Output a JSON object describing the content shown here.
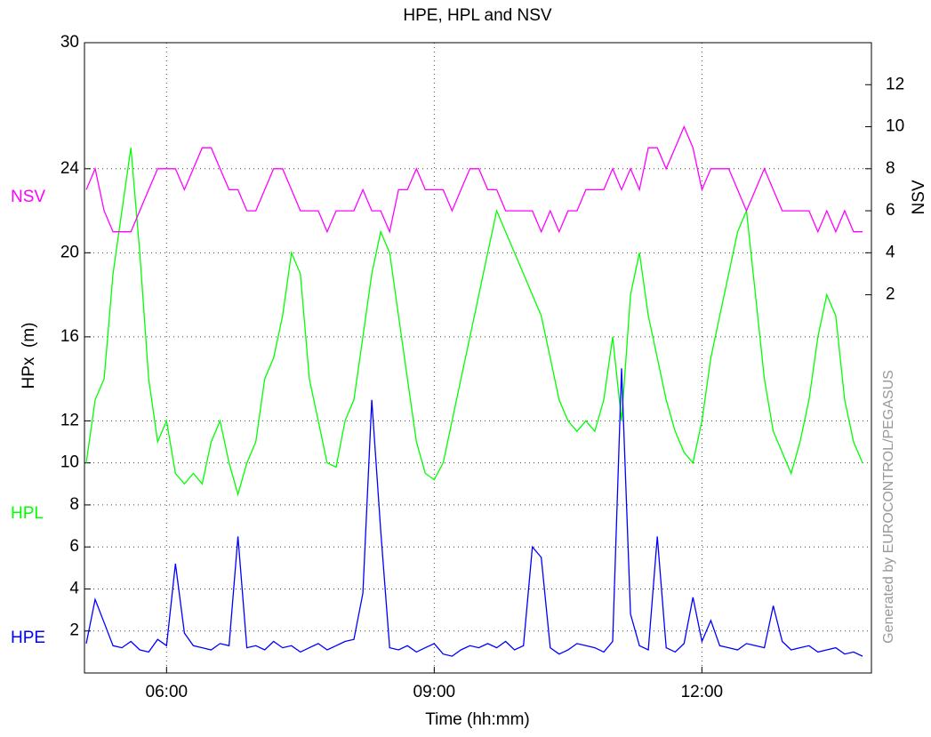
{
  "chart_data": {
    "type": "line",
    "title": "HPE, HPL and NSV",
    "x_label": "Time (hh:mm)",
    "y_label": "HPx  (m)",
    "y2_label": "NSV",
    "annotation": "Generated by EUROCONTROL/PEGASUS",
    "x": [
      5.1,
      5.2,
      5.3,
      5.4,
      5.5,
      5.6,
      5.7,
      5.8,
      5.9,
      6.0,
      6.1,
      6.2,
      6.3,
      6.4,
      6.5,
      6.6,
      6.7,
      6.8,
      6.9,
      7.0,
      7.1,
      7.2,
      7.3,
      7.4,
      7.5,
      7.6,
      7.7,
      7.8,
      7.9,
      8.0,
      8.1,
      8.2,
      8.3,
      8.4,
      8.5,
      8.6,
      8.7,
      8.8,
      8.9,
      9.0,
      9.1,
      9.2,
      9.3,
      9.4,
      9.5,
      9.6,
      9.7,
      9.8,
      9.9,
      10.0,
      10.1,
      10.2,
      10.3,
      10.4,
      10.5,
      10.6,
      10.7,
      10.8,
      10.9,
      11.0,
      11.1,
      11.2,
      11.3,
      11.4,
      11.5,
      11.6,
      11.7,
      11.8,
      11.9,
      12.0,
      12.1,
      12.2,
      12.3,
      12.4,
      12.5,
      12.6,
      12.7,
      12.8,
      12.9,
      13.0,
      13.1,
      13.2,
      13.3,
      13.4,
      13.5,
      13.6,
      13.7,
      13.8
    ],
    "series": [
      {
        "name": "HPL",
        "color": "#00ff00",
        "values": [
          10,
          13,
          14,
          19,
          22,
          25,
          20,
          14,
          11,
          12,
          9.5,
          9,
          9.5,
          9,
          11,
          12,
          10,
          8.5,
          10,
          11,
          14,
          15,
          17,
          20,
          19,
          14,
          12,
          10,
          9.8,
          12,
          13,
          16,
          19,
          21,
          20,
          17,
          14,
          11,
          9.5,
          9.2,
          10,
          12,
          14,
          16,
          18,
          20,
          22,
          21,
          20,
          19,
          18,
          17,
          15,
          13,
          12,
          11.5,
          12,
          11.5,
          13,
          16,
          12,
          18,
          20,
          17,
          15,
          13,
          11.5,
          10.5,
          10,
          12,
          15,
          17,
          19,
          21,
          22,
          18,
          14,
          11.5,
          10.5,
          9.5,
          11,
          13,
          16,
          18,
          17,
          13,
          11,
          10
        ]
      },
      {
        "name": "NSV",
        "color": "#ff00ff",
        "axis": "y2",
        "values": [
          7,
          8,
          6,
          5,
          5,
          5,
          6,
          7,
          8,
          8,
          8,
          7,
          8,
          9,
          9,
          8,
          7,
          7,
          6,
          6,
          7,
          8,
          8,
          7,
          6,
          6,
          6,
          5,
          6,
          6,
          6,
          7,
          6,
          6,
          5,
          7,
          7,
          8,
          7,
          7,
          7,
          6,
          7,
          8,
          8,
          7,
          7,
          6,
          6,
          6,
          6,
          5,
          6,
          5,
          6,
          6,
          7,
          7,
          7,
          8,
          7,
          8,
          7,
          9,
          9,
          8,
          9,
          10,
          9,
          7,
          8,
          8,
          8,
          7,
          6,
          7,
          8,
          7,
          6,
          6,
          6,
          6,
          5,
          6,
          5,
          6,
          5,
          5
        ]
      },
      {
        "name": "HPE",
        "color": "#0000ff",
        "values": [
          1.4,
          3.5,
          2.4,
          1.3,
          1.2,
          1.5,
          1.1,
          1.0,
          1.6,
          1.3,
          5.2,
          1.9,
          1.3,
          1.2,
          1.1,
          1.4,
          1.3,
          6.5,
          1.2,
          1.3,
          1.1,
          1.5,
          1.2,
          1.3,
          1.0,
          1.2,
          1.4,
          1.1,
          1.3,
          1.5,
          1.6,
          3.8,
          13,
          6.8,
          1.2,
          1.1,
          1.3,
          1.0,
          1.2,
          1.4,
          0.9,
          0.8,
          1.1,
          1.3,
          1.2,
          1.4,
          1.2,
          1.5,
          1.1,
          1.3,
          6,
          5.5,
          1.2,
          0.9,
          1.1,
          1.4,
          1.3,
          1.2,
          1.0,
          1.5,
          14.5,
          2.8,
          1.3,
          1.1,
          6.5,
          1.2,
          1.0,
          1.4,
          3.6,
          1.5,
          2.5,
          1.3,
          1.2,
          1.1,
          1.4,
          1.3,
          1.2,
          3.2,
          1.5,
          1.1,
          1.2,
          1.3,
          1.0,
          1.1,
          1.2,
          0.9,
          1.0,
          0.8
        ]
      }
    ],
    "xlim": [
      5.08,
      13.9
    ],
    "xticks": [
      {
        "value": 6,
        "label": "06:00"
      },
      {
        "value": 9,
        "label": "09:00"
      },
      {
        "value": 12,
        "label": "12:00"
      }
    ],
    "ylim": [
      0,
      30
    ],
    "yticks": [
      2,
      4,
      6,
      8,
      10,
      12,
      16,
      20,
      24,
      30
    ],
    "y2lim": [
      -16,
      14
    ],
    "y2ticks": [
      2,
      4,
      6,
      8,
      10,
      12
    ],
    "grid": true
  }
}
